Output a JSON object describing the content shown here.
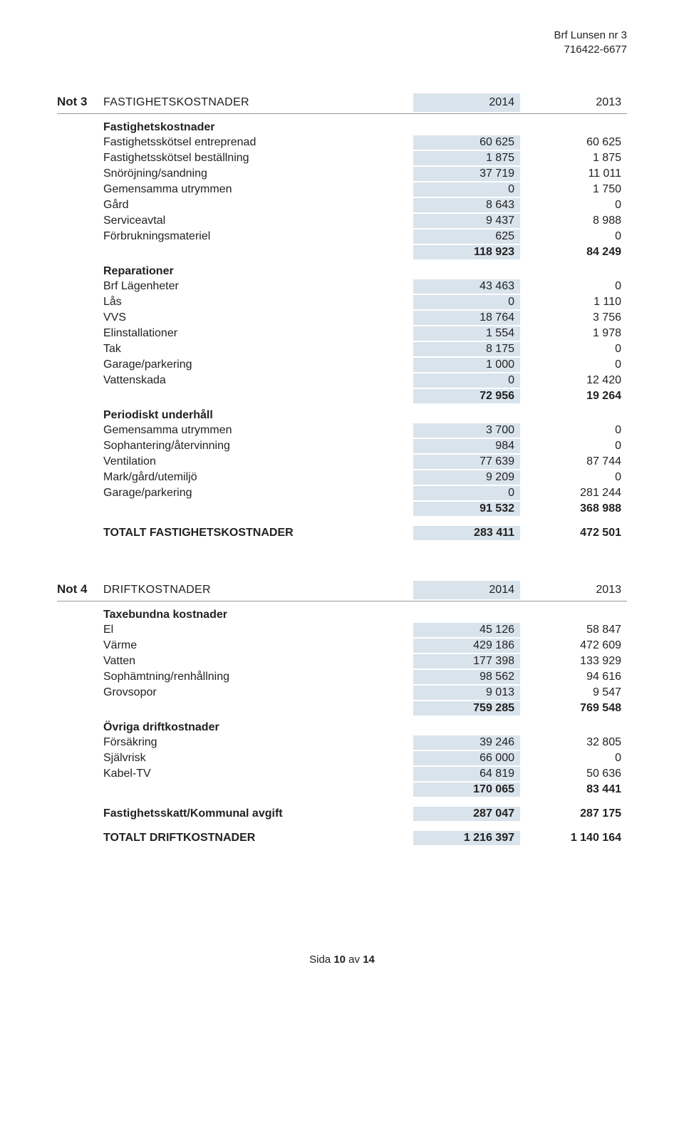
{
  "header": {
    "org": "Brf Lunsen nr 3",
    "orgnr": "716422-6677"
  },
  "not3": {
    "label": "Not 3",
    "title": "FASTIGHETSKOSTNADER",
    "year1": "2014",
    "year2": "2013",
    "sections": {
      "s1": {
        "title": "Fastighetskostnader"
      },
      "r1": {
        "l": "Fastighetsskötsel entreprenad",
        "a": "60 625",
        "b": "60 625"
      },
      "r2": {
        "l": "Fastighetsskötsel beställning",
        "a": "1 875",
        "b": "1 875"
      },
      "r3": {
        "l": "Snöröjning/sandning",
        "a": "37 719",
        "b": "11 011"
      },
      "r4": {
        "l": "Gemensamma utrymmen",
        "a": "0",
        "b": "1 750"
      },
      "r5": {
        "l": "Gård",
        "a": "8 643",
        "b": "0"
      },
      "r6": {
        "l": "Serviceavtal",
        "a": "9 437",
        "b": "8 988"
      },
      "r7": {
        "l": "Förbrukningsmateriel",
        "a": "625",
        "b": "0"
      },
      "sub1": {
        "a": "118 923",
        "b": "84 249"
      },
      "s2": {
        "title": "Reparationer"
      },
      "r8": {
        "l": "Brf Lägenheter",
        "a": "43 463",
        "b": "0"
      },
      "r9": {
        "l": "Lås",
        "a": "0",
        "b": "1 110"
      },
      "r10": {
        "l": "VVS",
        "a": "18 764",
        "b": "3 756"
      },
      "r11": {
        "l": "Elinstallationer",
        "a": "1 554",
        "b": "1 978"
      },
      "r12": {
        "l": "Tak",
        "a": "8 175",
        "b": "0"
      },
      "r13": {
        "l": "Garage/parkering",
        "a": "1 000",
        "b": "0"
      },
      "r14": {
        "l": "Vattenskada",
        "a": "0",
        "b": "12 420"
      },
      "sub2": {
        "a": "72 956",
        "b": "19 264"
      },
      "s3": {
        "title": "Periodiskt underhåll"
      },
      "r15": {
        "l": "Gemensamma utrymmen",
        "a": "3 700",
        "b": "0"
      },
      "r16": {
        "l": "Sophantering/återvinning",
        "a": "984",
        "b": "0"
      },
      "r17": {
        "l": "Ventilation",
        "a": "77 639",
        "b": "87 744"
      },
      "r18": {
        "l": "Mark/gård/utemiljö",
        "a": "9 209",
        "b": "0"
      },
      "r19": {
        "l": "Garage/parkering",
        "a": "0",
        "b": "281 244"
      },
      "sub3": {
        "a": "91 532",
        "b": "368 988"
      },
      "total": {
        "l": "TOTALT FASTIGHETSKOSTNADER",
        "a": "283 411",
        "b": "472 501"
      }
    }
  },
  "not4": {
    "label": "Not 4",
    "title": "DRIFTKOSTNADER",
    "year1": "2014",
    "year2": "2013",
    "sections": {
      "s1": {
        "title": "Taxebundna kostnader"
      },
      "r1": {
        "l": "El",
        "a": "45 126",
        "b": "58 847"
      },
      "r2": {
        "l": "Värme",
        "a": "429 186",
        "b": "472 609"
      },
      "r3": {
        "l": "Vatten",
        "a": "177 398",
        "b": "133 929"
      },
      "r4": {
        "l": "Sophämtning/renhållning",
        "a": "98 562",
        "b": "94 616"
      },
      "r5": {
        "l": "Grovsopor",
        "a": "9 013",
        "b": "9 547"
      },
      "sub1": {
        "a": "759 285",
        "b": "769 548"
      },
      "s2": {
        "title": "Övriga driftkostnader"
      },
      "r6": {
        "l": "Försäkring",
        "a": "39 246",
        "b": "32 805"
      },
      "r7": {
        "l": "Självrisk",
        "a": "66 000",
        "b": "0"
      },
      "r8": {
        "l": "Kabel-TV",
        "a": "64 819",
        "b": "50 636"
      },
      "sub2": {
        "a": "170 065",
        "b": "83 441"
      },
      "r9": {
        "l": "Fastighetsskatt/Kommunal avgift",
        "a": "287 047",
        "b": "287 175"
      },
      "total": {
        "l": "TOTALT DRIFTKOSTNADER",
        "a": "1 216 397",
        "b": "1 140 164"
      }
    }
  },
  "footer": {
    "prefix": "Sida ",
    "page": "10",
    "mid": " av ",
    "total": "14"
  },
  "style": {
    "highlight_bg": "#d9e3ec",
    "text_color": "#222",
    "rule_color": "#999",
    "page_bg": "#ffffff"
  }
}
